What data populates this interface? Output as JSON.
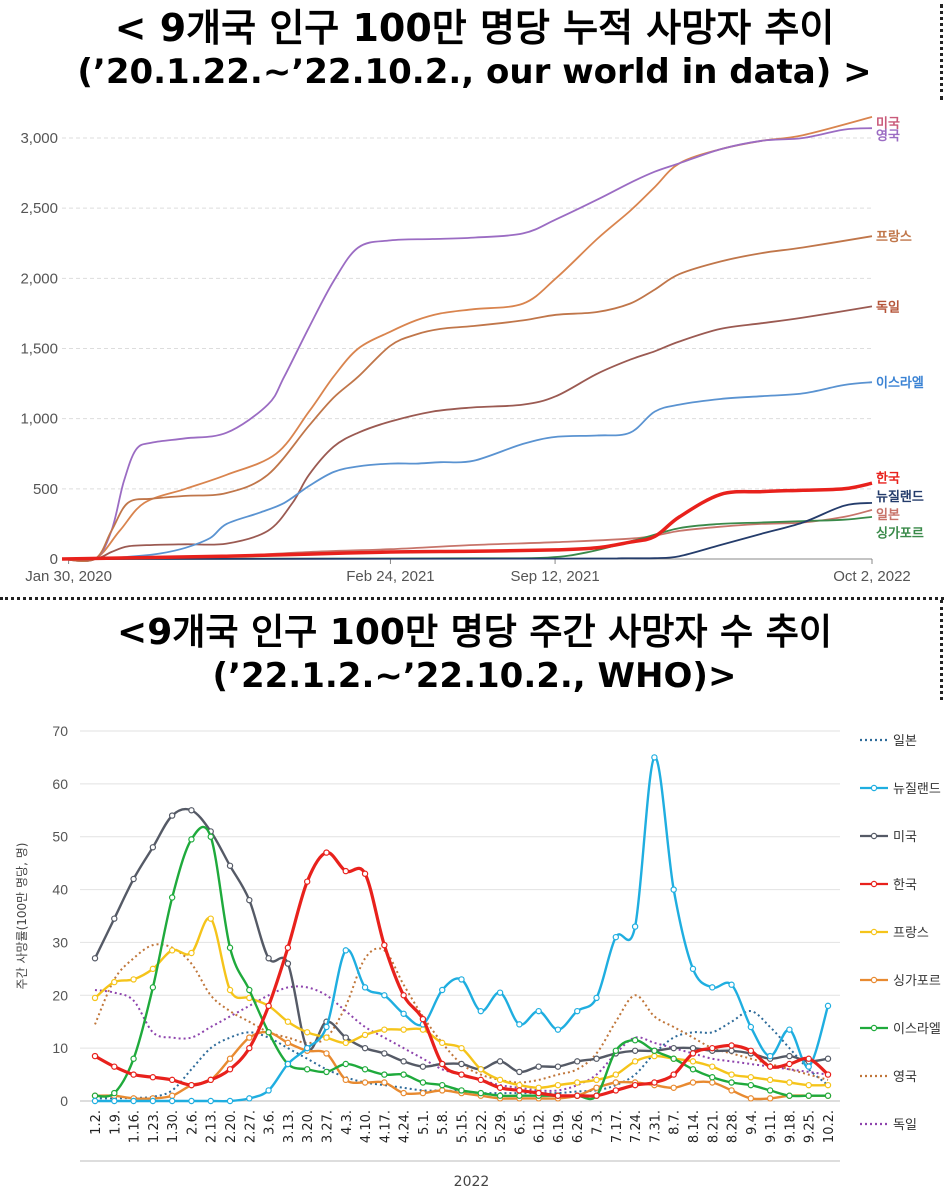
{
  "chart_data": [
    {
      "type": "line",
      "title": "< 9개국 인구 100만 명당 누적 사망자 추이",
      "subtitle": "(’20.1.22.~’22.10.2., our world in data) >",
      "x_ticks": [
        "Jan 30, 2020",
        "Feb 24, 2021",
        "Sep 12, 2021",
        "Oct 2, 2022"
      ],
      "x_tick_days": [
        8,
        399,
        599,
        984
      ],
      "x_range_days": [
        0,
        984
      ],
      "ylim": [
        0,
        3000
      ],
      "y_ticks": [
        0,
        500,
        1000,
        1500,
        2000,
        2500,
        3000
      ],
      "y_tick_labels": [
        "0",
        "500",
        "1,000",
        "1,500",
        "2,000",
        "2,500",
        "3,000"
      ],
      "grid": true,
      "series": [
        {
          "name": "미국",
          "color": "#d9844e",
          "x": [
            0,
            40,
            70,
            100,
            150,
            200,
            260,
            300,
            330,
            360,
            399,
            430,
            460,
            500,
            560,
            600,
            650,
            690,
            720,
            750,
            800,
            850,
            900,
            984
          ],
          "y": [
            0,
            0,
            200,
            400,
            500,
            600,
            750,
            1050,
            1300,
            1500,
            1620,
            1700,
            1750,
            1780,
            1820,
            2000,
            2280,
            2480,
            2650,
            2820,
            2920,
            2980,
            3020,
            3150
          ]
        },
        {
          "name": "영국",
          "color": "#9b6cc3",
          "x": [
            0,
            40,
            60,
            75,
            90,
            110,
            150,
            200,
            250,
            270,
            300,
            330,
            360,
            399,
            450,
            500,
            560,
            600,
            650,
            690,
            720,
            750,
            800,
            850,
            900,
            950,
            984
          ],
          "y": [
            0,
            0,
            200,
            550,
            780,
            830,
            860,
            900,
            1100,
            1300,
            1650,
            1980,
            2220,
            2270,
            2280,
            2290,
            2320,
            2420,
            2560,
            2680,
            2760,
            2820,
            2920,
            2980,
            3000,
            3060,
            3070
          ]
        },
        {
          "name": "프랑스",
          "color": "#c0764a",
          "x": [
            0,
            40,
            60,
            80,
            110,
            150,
            200,
            250,
            300,
            330,
            360,
            399,
            430,
            460,
            500,
            560,
            600,
            650,
            690,
            720,
            750,
            800,
            850,
            900,
            984
          ],
          "y": [
            0,
            0,
            200,
            400,
            430,
            450,
            470,
            600,
            950,
            1150,
            1300,
            1520,
            1600,
            1640,
            1660,
            1700,
            1740,
            1760,
            1820,
            1920,
            2030,
            2120,
            2180,
            2220,
            2300
          ]
        },
        {
          "name": "독일",
          "color": "#9b5a52",
          "x": [
            0,
            40,
            60,
            80,
            110,
            150,
            200,
            250,
            280,
            300,
            330,
            360,
            399,
            450,
            500,
            560,
            600,
            650,
            690,
            720,
            750,
            800,
            850,
            900,
            984
          ],
          "y": [
            0,
            0,
            50,
            90,
            100,
            105,
            110,
            200,
            400,
            600,
            800,
            900,
            980,
            1050,
            1080,
            1100,
            1160,
            1320,
            1420,
            1480,
            1550,
            1640,
            1680,
            1720,
            1800
          ]
        },
        {
          "name": "이스라엘",
          "color": "#5a93d1",
          "x": [
            0,
            40,
            90,
            120,
            150,
            180,
            200,
            240,
            270,
            300,
            330,
            360,
            399,
            430,
            460,
            500,
            560,
            600,
            650,
            690,
            720,
            750,
            800,
            850,
            900,
            950,
            984
          ],
          "y": [
            0,
            0,
            20,
            40,
            80,
            150,
            250,
            330,
            400,
            520,
            620,
            660,
            680,
            680,
            690,
            700,
            820,
            870,
            880,
            900,
            1050,
            1100,
            1140,
            1160,
            1180,
            1240,
            1260
          ]
        },
        {
          "name": "한국",
          "color": "#e8211c",
          "x": [
            0,
            100,
            200,
            300,
            399,
            500,
            600,
            650,
            690,
            720,
            750,
            800,
            850,
            900,
            950,
            984
          ],
          "y": [
            0,
            10,
            20,
            35,
            50,
            55,
            65,
            80,
            120,
            160,
            300,
            460,
            480,
            490,
            500,
            540
          ]
        },
        {
          "name": "뉴질랜드",
          "color": "#243c6b",
          "x": [
            0,
            600,
            680,
            720,
            750,
            800,
            850,
            900,
            950,
            984
          ],
          "y": [
            0,
            3,
            5,
            6,
            20,
            100,
            180,
            260,
            380,
            400
          ]
        },
        {
          "name": "일본",
          "color": "#c7746a",
          "x": [
            0,
            100,
            200,
            300,
            399,
            500,
            600,
            700,
            750,
            800,
            850,
            900,
            950,
            984
          ],
          "y": [
            0,
            5,
            20,
            50,
            70,
            100,
            120,
            150,
            200,
            230,
            250,
            260,
            300,
            350
          ]
        },
        {
          "name": "싱가포르",
          "color": "#3a8a4a",
          "x": [
            0,
            300,
            500,
            590,
            640,
            700,
            750,
            800,
            850,
            900,
            950,
            984
          ],
          "y": [
            0,
            3,
            5,
            10,
            50,
            140,
            220,
            250,
            260,
            270,
            280,
            300
          ]
        }
      ],
      "end_labels": [
        {
          "text": "미국",
          "color": "#c95a7a",
          "y": 3110
        },
        {
          "text": "영국",
          "color": "#9b6cc3",
          "y": 3020
        },
        {
          "text": "프랑스",
          "color": "#c0764a",
          "y": 2300
        },
        {
          "text": "독일",
          "color": "#b5553a",
          "y": 1800
        },
        {
          "text": "이스라엘",
          "color": "#3b83d4",
          "y": 1260
        },
        {
          "text": "한국",
          "color": "#e8211c",
          "y": 580
        },
        {
          "text": "뉴질랜드",
          "color": "#243c6b",
          "y": 450
        },
        {
          "text": "일본",
          "color": "#c7746a",
          "y": 320
        },
        {
          "text": "싱가포르",
          "color": "#3a8a4a",
          "y": 190
        }
      ]
    },
    {
      "type": "line",
      "title": "<9개국 인구 100만 명당 주간 사망자 수 추이",
      "subtitle": "(’22.1.2.~’22.10.2., WHO)>",
      "ylabel": "주간 사망률(100만 명당, 명)",
      "xlabel": "2022",
      "ylim": [
        0,
        70
      ],
      "y_ticks": [
        0,
        10,
        20,
        30,
        40,
        50,
        60,
        70
      ],
      "grid": true,
      "categories": [
        "1.2.",
        "1.9.",
        "1.16.",
        "1.23.",
        "1.30.",
        "2.6.",
        "2.13.",
        "2.20.",
        "2.27.",
        "3.6.",
        "3.13.",
        "3.20.",
        "3.27.",
        "4.3.",
        "4.10.",
        "4.17.",
        "4.24.",
        "5.1.",
        "5.8.",
        "5.15.",
        "5.22.",
        "5.29.",
        "6.5.",
        "6.12.",
        "6.19.",
        "6.26.",
        "7.3.",
        "7.17.",
        "7.24.",
        "7.31.",
        "8.7.",
        "8.14.",
        "8.21.",
        "8.28.",
        "9.4.",
        "9.11.",
        "9.18.",
        "9.25.",
        "10.2."
      ],
      "series": [
        {
          "name": "일본",
          "color": "#2e6b9a",
          "style": "dotted",
          "markers": false,
          "values": [
            0.5,
            0.5,
            0.6,
            0.8,
            2,
            6,
            10,
            12,
            13,
            12,
            10,
            8,
            6,
            4.5,
            3.5,
            3,
            2.5,
            2,
            2,
            1.8,
            1.5,
            1.5,
            1.5,
            1.5,
            1.5,
            1.8,
            2,
            3,
            5,
            9,
            12,
            13,
            13,
            15,
            17,
            14,
            10,
            6,
            3
          ]
        },
        {
          "name": "뉴질랜드",
          "color": "#1faee0",
          "style": "solid",
          "markers": true,
          "values": [
            0,
            0,
            0,
            0,
            0,
            0,
            0,
            0,
            0.5,
            2,
            7,
            10,
            14,
            28.5,
            21.5,
            20,
            16.5,
            14.5,
            21,
            23,
            17,
            20.5,
            14.5,
            17,
            13.5,
            17,
            19.5,
            31,
            33,
            65,
            40,
            25,
            21.5,
            22,
            14,
            8.5,
            13.5,
            6.5,
            18
          ]
        },
        {
          "name": "미국",
          "color": "#555a66",
          "style": "solid",
          "markers": true,
          "values": [
            27,
            34.5,
            42,
            48,
            54,
            55,
            51,
            44.5,
            38,
            27,
            26,
            10,
            15,
            12,
            10,
            9,
            7.5,
            6.5,
            7,
            7,
            6,
            7.5,
            5.5,
            6.5,
            6.5,
            7.5,
            8,
            9,
            9.5,
            9.5,
            10,
            10,
            9.5,
            9.5,
            9,
            8,
            8.5,
            7.5,
            8
          ]
        },
        {
          "name": "한국",
          "color": "#e8211c",
          "style": "solid",
          "markers": true,
          "values": [
            8.5,
            6.5,
            5,
            4.5,
            4,
            3,
            4,
            6,
            10,
            18,
            29,
            41.5,
            47,
            43.5,
            43,
            29.5,
            20,
            15.5,
            7,
            5,
            4,
            2.5,
            2,
            1.5,
            1,
            1,
            1,
            2,
            3,
            3.5,
            5,
            9,
            10,
            10.5,
            9.5,
            6.5,
            7,
            8,
            5
          ]
        },
        {
          "name": "프랑스",
          "color": "#f5c41a",
          "style": "solid",
          "markers": true,
          "values": [
            19.5,
            22.5,
            23,
            25,
            28.5,
            28,
            34.5,
            21,
            19.5,
            18,
            15,
            13,
            12,
            11,
            12.5,
            13.5,
            13.5,
            13.5,
            11,
            10,
            6,
            4,
            3,
            2.5,
            3,
            3.5,
            4,
            5,
            7.5,
            8.5,
            8,
            7.5,
            6.5,
            5,
            4.5,
            4,
            3.5,
            3,
            3
          ]
        },
        {
          "name": "싱가포르",
          "color": "#e88a30",
          "style": "solid",
          "markers": true,
          "values": [
            1,
            1,
            0.5,
            0.5,
            1,
            3,
            4,
            8,
            12,
            13,
            11,
            9.5,
            9,
            4,
            3.5,
            3.5,
            1.5,
            1.5,
            2,
            1.5,
            1,
            0.5,
            0.5,
            0.5,
            0.5,
            1,
            2.5,
            3.5,
            3.5,
            3,
            2.5,
            3.5,
            3.5,
            2,
            0.5,
            0.5,
            1,
            1,
            1
          ]
        },
        {
          "name": "이스라엘",
          "color": "#1faa3c",
          "style": "solid",
          "markers": true,
          "values": [
            1,
            1.5,
            8,
            21.5,
            38.5,
            49.5,
            50,
            29,
            21,
            13,
            7,
            6,
            5.5,
            7,
            6,
            5,
            5,
            3.5,
            3,
            2,
            1.5,
            1,
            1,
            1,
            1,
            1,
            1,
            9.5,
            11.5,
            9.5,
            8,
            6,
            4.5,
            3.5,
            3,
            2,
            1,
            1,
            1
          ]
        },
        {
          "name": "영국",
          "color": "#c0763a",
          "style": "dotted",
          "markers": false,
          "values": [
            14.5,
            23,
            27,
            29.5,
            29,
            26,
            20,
            17,
            15,
            13,
            12,
            11,
            12,
            18,
            27,
            28.5,
            22,
            16,
            11,
            7,
            5,
            4,
            3.5,
            4,
            5,
            6,
            9,
            15,
            20,
            16,
            14,
            12,
            10,
            9,
            8,
            7,
            6,
            5,
            4
          ]
        },
        {
          "name": "독일",
          "color": "#8e44ad",
          "style": "dotted",
          "markers": false,
          "values": [
            21,
            20.5,
            19,
            13,
            12,
            12,
            14,
            16,
            18,
            20,
            21.5,
            21.5,
            20,
            17,
            14,
            12,
            10,
            8,
            6,
            5,
            4,
            3,
            2.5,
            2,
            2,
            3,
            5,
            9,
            12,
            11,
            10,
            9,
            8,
            7.5,
            7,
            6.5,
            6,
            5.5,
            5
          ]
        }
      ]
    }
  ]
}
